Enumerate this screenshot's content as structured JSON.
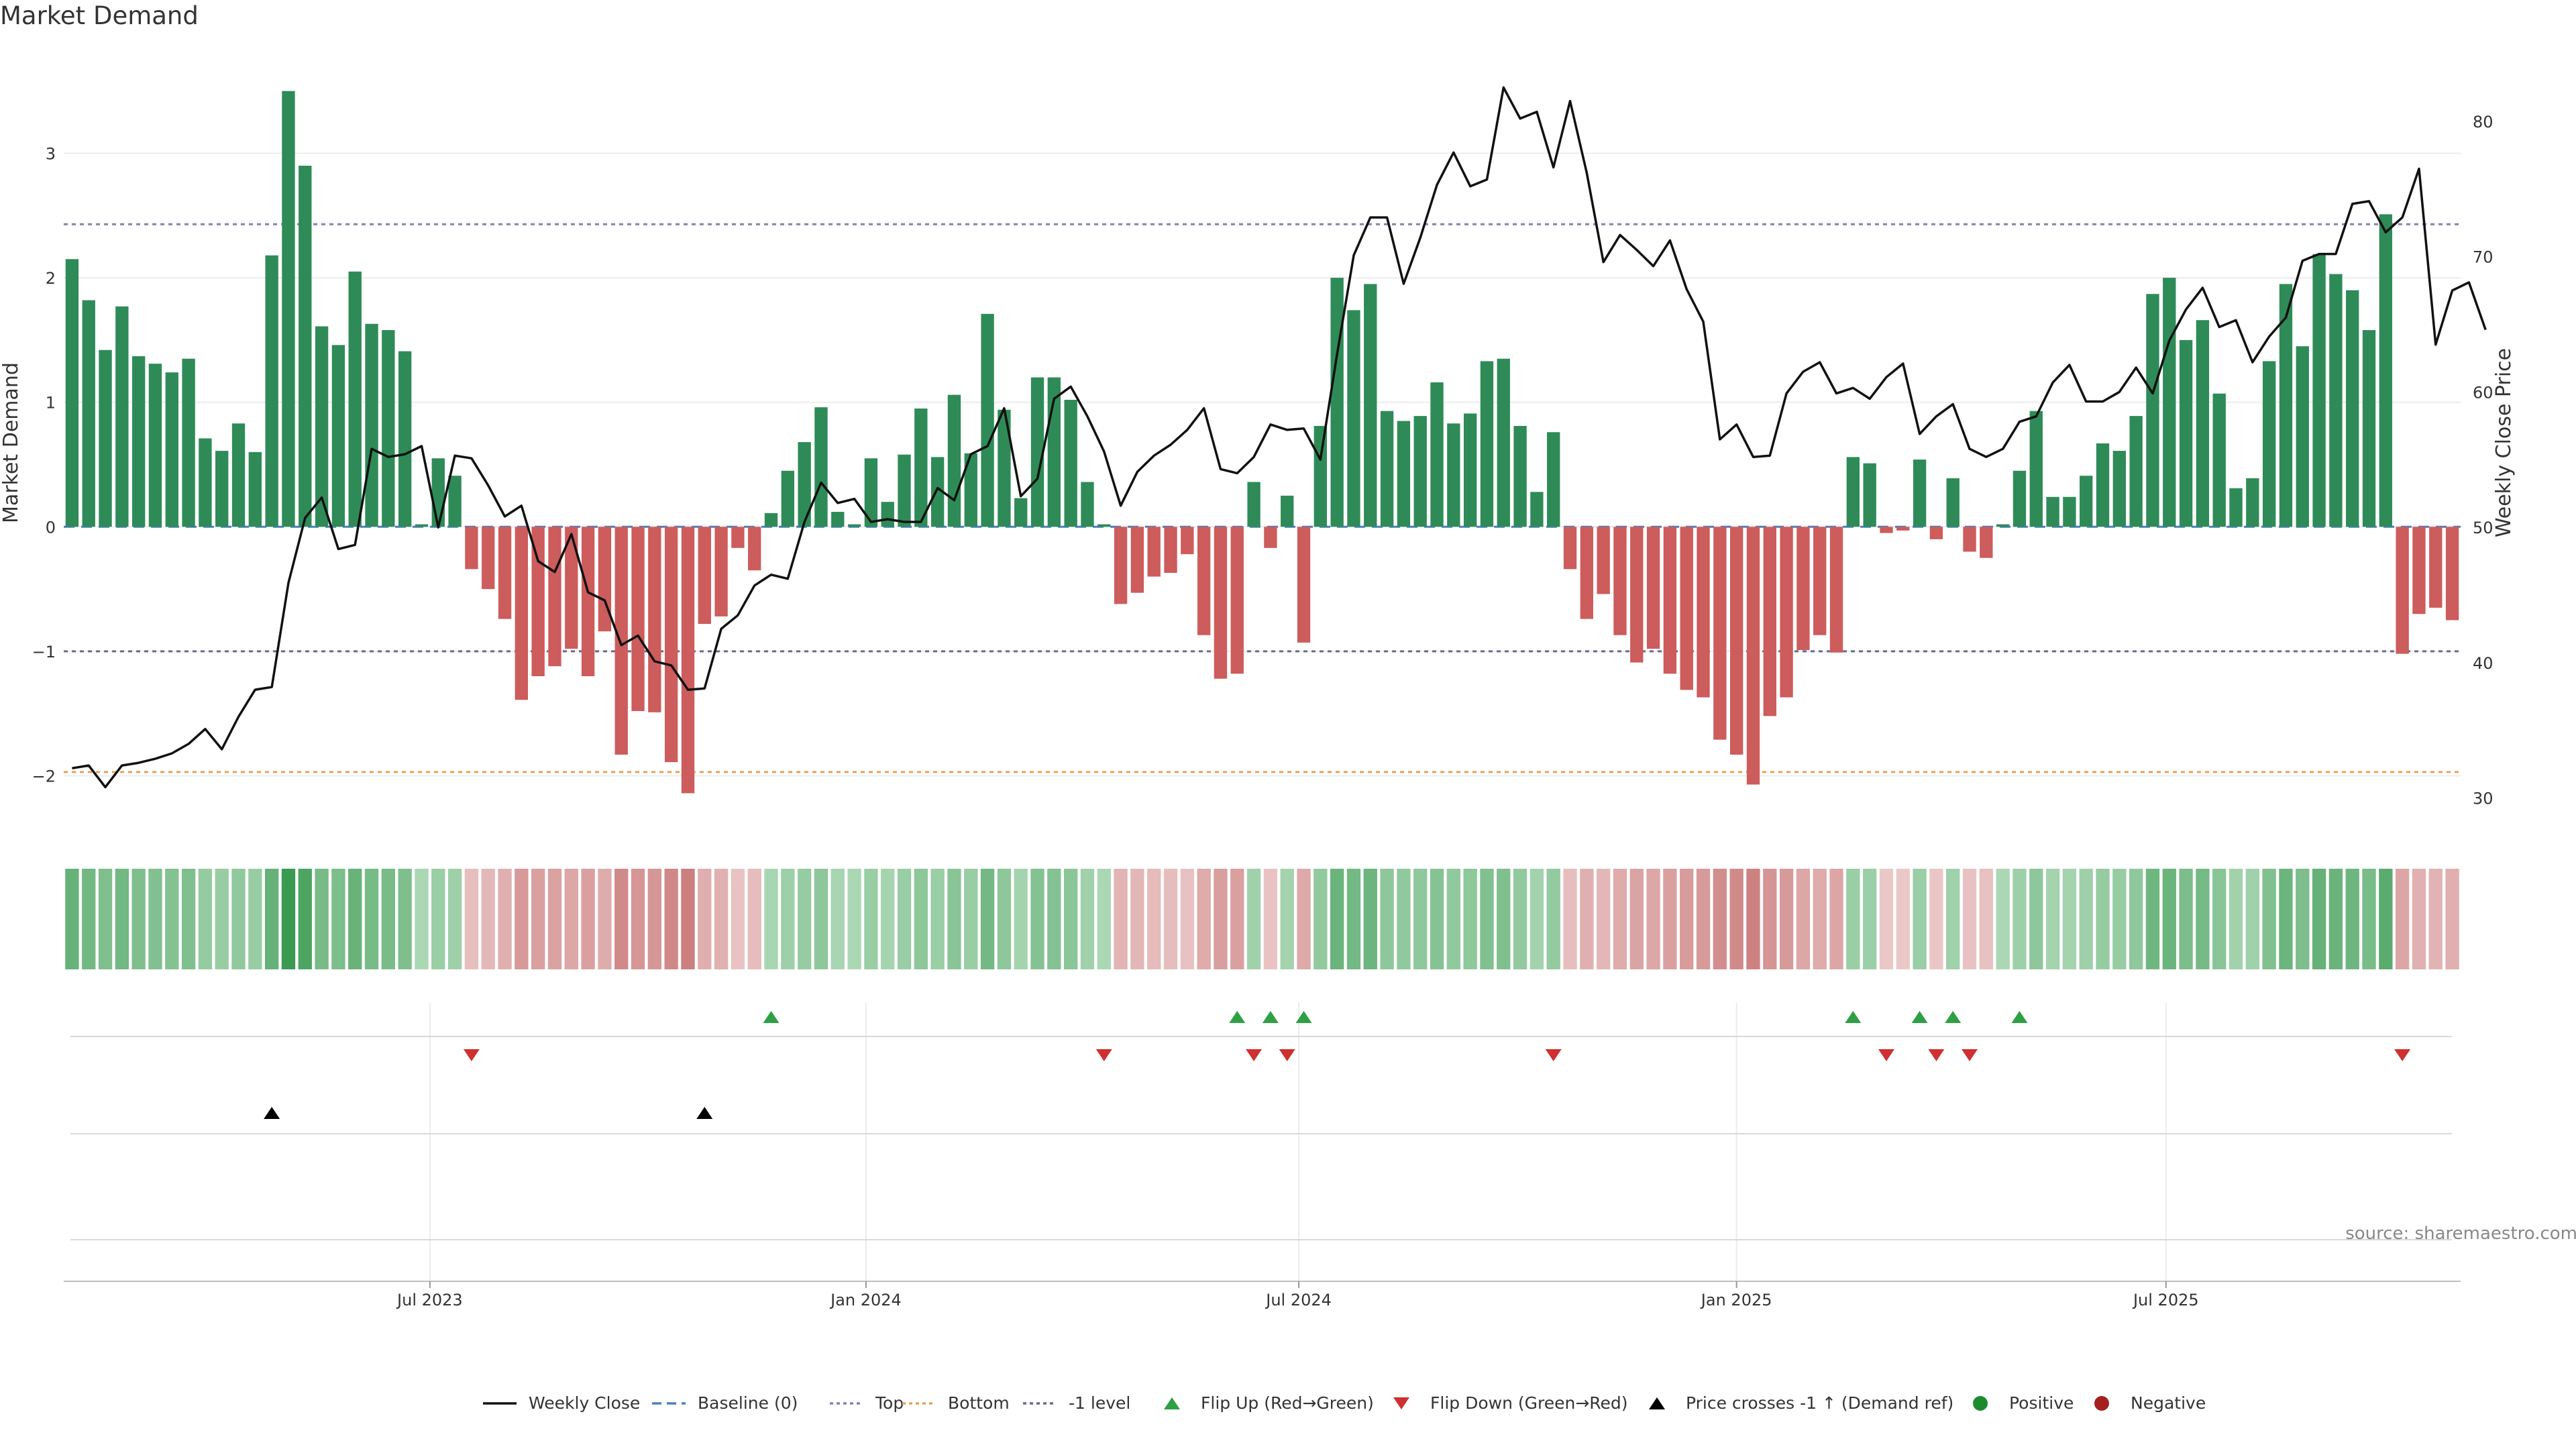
{
  "chart_data": {
    "type": "bar",
    "title": "Market Demand",
    "ylabel_left": "Market Demand",
    "ylabel_right": "Weekly Close Price",
    "source": "source: sharemaestro.com",
    "ylim_left": [
      -2.45,
      3.8
    ],
    "ylim_right": [
      27.5,
      85
    ],
    "yticks_left": [
      {
        "v": 3,
        "label": "3"
      },
      {
        "v": 2,
        "label": "2"
      },
      {
        "v": 1,
        "label": "1"
      },
      {
        "v": 0,
        "label": "0"
      },
      {
        "v": -1,
        "label": "−1"
      },
      {
        "v": -2,
        "label": "−2"
      }
    ],
    "yticks_right": [
      {
        "v": 80,
        "label": "80"
      },
      {
        "v": 70,
        "label": "70"
      },
      {
        "v": 60,
        "label": "60"
      },
      {
        "v": 50,
        "label": "50"
      },
      {
        "v": 40,
        "label": "40"
      },
      {
        "v": 30,
        "label": "30"
      }
    ],
    "xticks": [
      {
        "week": 21.5,
        "label": "Jul 2023"
      },
      {
        "week": 47.7,
        "label": "Jan 2024"
      },
      {
        "week": 73.7,
        "label": "Jul 2024"
      },
      {
        "week": 100.0,
        "label": "Jan 2025"
      },
      {
        "week": 125.8,
        "label": "Jul 2025"
      }
    ],
    "reference_lines": {
      "top": 2.43,
      "bottom": -1.97,
      "minus_one": -1.0,
      "baseline": 0
    },
    "market_demand": [
      2.15,
      1.82,
      1.42,
      1.77,
      1.37,
      1.31,
      1.24,
      1.35,
      0.71,
      0.61,
      0.83,
      0.6,
      2.18,
      3.5,
      2.9,
      1.61,
      1.46,
      2.05,
      1.63,
      1.58,
      1.41,
      0.02,
      0.55,
      0.41,
      -0.34,
      -0.5,
      -0.74,
      -1.39,
      -1.2,
      -1.12,
      -0.98,
      -1.2,
      -0.84,
      -1.83,
      -1.48,
      -1.49,
      -1.89,
      -2.14,
      -0.78,
      -0.72,
      -0.17,
      -0.35,
      0.11,
      0.45,
      0.68,
      0.96,
      0.12,
      0.02,
      0.55,
      0.2,
      0.58,
      0.95,
      0.56,
      1.06,
      0.59,
      1.71,
      0.94,
      0.23,
      1.2,
      1.2,
      1.02,
      0.36,
      0.02,
      -0.62,
      -0.53,
      -0.4,
      -0.37,
      -0.22,
      -0.87,
      -1.22,
      -1.18,
      0.36,
      -0.17,
      0.25,
      -0.93,
      0.81,
      2.0,
      1.74,
      1.95,
      0.93,
      0.85,
      0.89,
      1.16,
      0.83,
      0.91,
      1.33,
      1.35,
      0.81,
      0.28,
      0.76,
      -0.34,
      -0.74,
      -0.54,
      -0.87,
      -1.09,
      -0.98,
      -1.18,
      -1.31,
      -1.37,
      -1.71,
      -1.83,
      -2.07,
      -1.52,
      -1.37,
      -0.99,
      -0.87,
      -1.01,
      0.56,
      0.51,
      -0.05,
      -0.03,
      0.54,
      -0.1,
      0.39,
      -0.2,
      -0.25,
      0.02,
      0.45,
      0.93,
      0.24,
      0.24,
      0.41,
      0.67,
      0.61,
      0.89,
      1.87,
      2.0,
      1.5,
      1.66,
      1.07,
      0.31,
      0.39,
      1.33,
      1.95,
      1.45,
      2.19,
      2.03,
      1.9,
      1.58,
      2.51,
      -1.02,
      -0.7,
      -0.65,
      -0.75
    ],
    "weekly_close": [
      32.2,
      32.4,
      30.8,
      32.4,
      32.6,
      32.9,
      33.3,
      34.0,
      35.1,
      33.6,
      36.0,
      38.0,
      38.2,
      45.9,
      50.7,
      52.2,
      48.4,
      48.7,
      55.8,
      55.2,
      55.4,
      56.0,
      50.0,
      55.3,
      55.1,
      53.1,
      50.8,
      51.6,
      47.5,
      46.7,
      49.5,
      45.2,
      44.6,
      41.3,
      42.0,
      40.1,
      39.8,
      38.0,
      38.1,
      42.5,
      43.5,
      45.7,
      46.5,
      46.2,
      50.4,
      53.3,
      51.8,
      52.1,
      50.4,
      50.6,
      50.4,
      50.4,
      52.9,
      52.0,
      55.4,
      56.0,
      58.8,
      52.3,
      53.6,
      59.5,
      60.4,
      58.2,
      55.6,
      51.6,
      54.1,
      55.3,
      56.1,
      57.2,
      58.8,
      54.3,
      54.0,
      55.2,
      57.6,
      57.2,
      57.3,
      55.0,
      62.8,
      70.1,
      72.9,
      72.9,
      68.0,
      71.4,
      75.3,
      77.7,
      75.2,
      75.7,
      82.5,
      80.2,
      80.7,
      76.6,
      81.5,
      76.2,
      69.6,
      71.6,
      70.5,
      69.3,
      71.2,
      67.6,
      65.2,
      56.5,
      57.6,
      55.2,
      55.3,
      59.9,
      61.5,
      62.2,
      59.9,
      60.3,
      59.5,
      61.1,
      62.1,
      56.9,
      58.2,
      59.1,
      55.8,
      55.2,
      55.8,
      57.8,
      58.2,
      60.7,
      62.0,
      59.3,
      59.3,
      60.0,
      61.8,
      59.9,
      63.8,
      66.1,
      67.7,
      64.8,
      65.3,
      62.2,
      64.1,
      65.5,
      69.7,
      70.2,
      70.2,
      73.9,
      74.1,
      71.8,
      72.9,
      76.5,
      63.5,
      67.5,
      68.1,
      64.6
    ],
    "flip_up_weeks": [
      42,
      70,
      72,
      74,
      107,
      111,
      113,
      117
    ],
    "flip_down_weeks": [
      24,
      62,
      71,
      73,
      89,
      109,
      112,
      114,
      140
    ],
    "price_cross_weeks": [
      12,
      38
    ],
    "legend": [
      "Weekly Close",
      "Baseline (0)",
      "Top",
      "Bottom",
      "-1 level",
      "Flip Up (Red→Green)",
      "Flip Down (Green→Red)",
      "Price crosses -1 ↑ (Demand ref)",
      "Positive",
      "Negative"
    ],
    "colors": {
      "positive": "#2e8b57",
      "negative": "#cd5c5c",
      "price": "#111111",
      "baseline": "#4a7fc0",
      "top": "#8a7fb3",
      "bottom": "#e8a25a",
      "minus_one": "#6a6a8a",
      "flip_up": "#2ea043",
      "flip_down": "#d03030",
      "cross": "#000000",
      "positive_dot": "#1e8a2e",
      "negative_dot": "#a42020"
    }
  }
}
